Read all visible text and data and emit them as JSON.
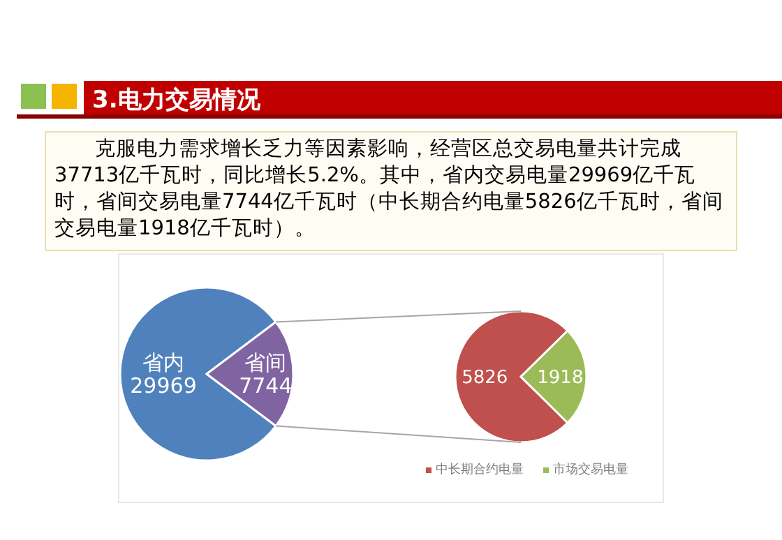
{
  "chart_data": [
    {
      "type": "pie",
      "title": "3.电力交易情况",
      "subtitle": "克服电力需求增长乏力等因素影响，经营区总交易电量共计完成37713亿千瓦时，同比增长5.2%。其中，省内交易电量29969亿千瓦时，省间交易电量7744亿千瓦时（中长期合约电量5826亿千瓦时，省间交易电量1918亿千瓦时）。",
      "categories": [
        "省内",
        "省间"
      ],
      "values": [
        29969,
        7744
      ],
      "colors": [
        "#4f81bd",
        "#8064a2"
      ],
      "data_labels": true,
      "legend": false
    },
    {
      "type": "pie",
      "categories": [
        "中长期合约电量",
        "市场交易电量"
      ],
      "values": [
        5826,
        1918
      ],
      "colors": [
        "#c0504d",
        "#9bbb59"
      ],
      "data_labels": true,
      "legend": "bottom"
    }
  ]
}
